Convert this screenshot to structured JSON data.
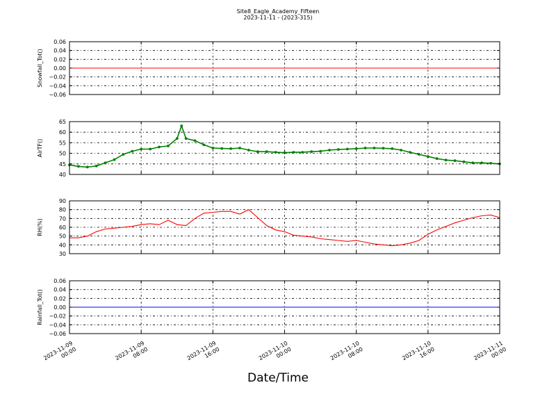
{
  "page": {
    "title": "Site8_Eagle_Academy_Fifteen",
    "subtitle": "2023-11-11 - (2023-315)",
    "xlabel": "Date/Time"
  },
  "chart_data": [
    {
      "type": "line",
      "ylabel": "Snowfall_Tot()",
      "ylim": [
        -0.06,
        0.06
      ],
      "yticks": [
        "0.06",
        "0.04",
        "0.02",
        "0.00",
        "−0.02",
        "−0.04",
        "−0.06"
      ],
      "grid": true,
      "color": "#ff0000",
      "series": [
        {
          "x": [
            "2023-11-09 00:00",
            "2023-11-11 00:00"
          ],
          "y": [
            0.0,
            0.0
          ]
        }
      ]
    },
    {
      "type": "line",
      "ylabel": "AirTF()",
      "ylim": [
        40,
        65
      ],
      "yticks": [
        "65",
        "60",
        "55",
        "50",
        "45",
        "40"
      ],
      "grid": true,
      "color": "#008000",
      "markers": true,
      "series": [
        {
          "x_hours": [
            0,
            1,
            2,
            3,
            4,
            5,
            6,
            7,
            8,
            9,
            10,
            11,
            12,
            12.5,
            13,
            14,
            15,
            16,
            17,
            18,
            19,
            20,
            21,
            22,
            23,
            24,
            25,
            26,
            27,
            28,
            29,
            30,
            31,
            32,
            33,
            34,
            35,
            36,
            37,
            38,
            39,
            40,
            41,
            42,
            43,
            44,
            45,
            46,
            47,
            48
          ],
          "y": [
            44.5,
            43.8,
            43.5,
            44.0,
            45.5,
            47.0,
            49.5,
            51.0,
            52.0,
            52.0,
            53.0,
            53.5,
            57.0,
            63.0,
            57.0,
            56.0,
            54.0,
            52.5,
            52.3,
            52.2,
            52.5,
            51.5,
            50.8,
            50.8,
            50.5,
            50.3,
            50.5,
            50.5,
            50.8,
            51.0,
            51.5,
            51.8,
            52.0,
            52.2,
            52.5,
            52.5,
            52.4,
            52.2,
            51.5,
            50.5,
            49.5,
            48.5,
            47.5,
            46.8,
            46.5,
            46.0,
            45.5,
            45.5,
            45.3,
            45.0
          ]
        }
      ]
    },
    {
      "type": "line",
      "ylabel": "RH(%)",
      "ylim": [
        30,
        90
      ],
      "yticks": [
        "90",
        "80",
        "70",
        "60",
        "50",
        "40",
        "30"
      ],
      "grid": true,
      "color": "#ff0000",
      "series": [
        {
          "x_hours": [
            0,
            1,
            2,
            3,
            4,
            5,
            6,
            7,
            8,
            9,
            10,
            11,
            12,
            13,
            14,
            15,
            16,
            17,
            18,
            19,
            20,
            21,
            22,
            23,
            24,
            25,
            26,
            27,
            28,
            29,
            30,
            31,
            32,
            33,
            34,
            35,
            36,
            37,
            38,
            39,
            40,
            41,
            42,
            43,
            44,
            45,
            46,
            47,
            48
          ],
          "y": [
            48,
            48,
            50,
            55,
            58,
            59,
            60,
            61,
            63,
            64,
            63,
            68,
            63,
            62,
            70,
            76,
            77,
            78,
            78,
            75,
            80,
            71,
            62,
            57,
            55,
            51,
            50,
            49,
            47,
            46,
            45,
            44,
            45,
            43,
            41,
            40,
            39,
            40,
            42,
            45,
            52,
            57,
            61,
            65,
            68,
            71,
            73,
            74,
            71
          ]
        }
      ]
    },
    {
      "type": "line",
      "ylabel": "Rainfall_Tot()",
      "ylim": [
        -0.06,
        0.06
      ],
      "yticks": [
        "0.06",
        "0.04",
        "0.02",
        "0.00",
        "−0.02",
        "−0.04",
        "−0.06"
      ],
      "grid": true,
      "color": "#0000ff",
      "series": [
        {
          "x": [
            "2023-11-09 00:00",
            "2023-11-11 00:00"
          ],
          "y": [
            0.0,
            0.0
          ]
        }
      ]
    }
  ],
  "x_ticks": [
    [
      "2023-11-09",
      "00:00"
    ],
    [
      "2023-11-09",
      "08:00"
    ],
    [
      "2023-11-09",
      "16:00"
    ],
    [
      "2023-11-10",
      "00:00"
    ],
    [
      "2023-11-10",
      "08:00"
    ],
    [
      "2023-11-10",
      "16:00"
    ],
    [
      "2023-11-11",
      "00:00"
    ]
  ]
}
